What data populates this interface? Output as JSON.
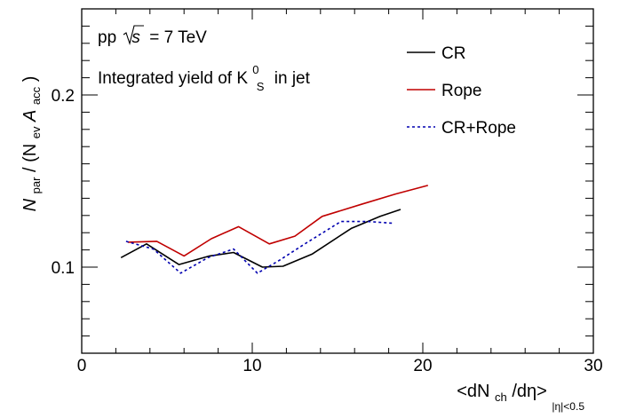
{
  "chart_data": {
    "type": "line",
    "annotations": {
      "system": "pp",
      "energy_symbol": "s",
      "energy_value": "= 7 TeV",
      "yield_prefix": "Integrated yield of K",
      "yield_sup": "0",
      "yield_sub": "S",
      "yield_suffix": "in jet"
    },
    "xlabel": {
      "prefix": "<dN",
      "sub1": "ch",
      "suffix": "/dη>",
      "sub2": "|η|<0.5"
    },
    "ylabel": {
      "n": "N",
      "n_sub": "par",
      "mid": " / (N",
      "ev_sub": "ev",
      "a": " A",
      "acc_sub": "acc",
      "end": ")"
    },
    "xlim": [
      0,
      30
    ],
    "ylim": [
      0.05,
      0.25
    ],
    "x_ticks": [
      "0",
      "10",
      "20",
      "30"
    ],
    "y_ticks": [
      "0.1",
      "0.2"
    ],
    "grid": false,
    "legend_position": "top-right",
    "series": [
      {
        "name": "CR",
        "color": "#000000",
        "style": "solid",
        "x": [
          2.3,
          3.8,
          5.7,
          7.5,
          8.9,
          10.6,
          11.8,
          13.5,
          15.8,
          17.5,
          18.7
        ],
        "y": [
          0.1055,
          0.1135,
          0.1015,
          0.1065,
          0.1085,
          0.1,
          0.1005,
          0.1075,
          0.1225,
          0.1295,
          0.1335
        ]
      },
      {
        "name": "Rope",
        "color": "#c00000",
        "style": "solid",
        "x": [
          2.7,
          4.4,
          6.0,
          7.6,
          9.2,
          11.0,
          12.5,
          14.1,
          16.4,
          18.4,
          20.3
        ],
        "y": [
          0.1145,
          0.115,
          0.1065,
          0.1165,
          0.1235,
          0.1135,
          0.118,
          0.1295,
          0.1365,
          0.1425,
          0.1475
        ]
      },
      {
        "name": "CR+Rope",
        "color": "#0000b0",
        "style": "dashed",
        "x": [
          2.6,
          4.2,
          5.8,
          7.4,
          8.9,
          10.3,
          11.6,
          13.0,
          15.2,
          16.8,
          18.2
        ],
        "y": [
          0.115,
          0.1105,
          0.0965,
          0.1055,
          0.1105,
          0.0965,
          0.104,
          0.113,
          0.1265,
          0.1265,
          0.1255
        ]
      }
    ]
  }
}
